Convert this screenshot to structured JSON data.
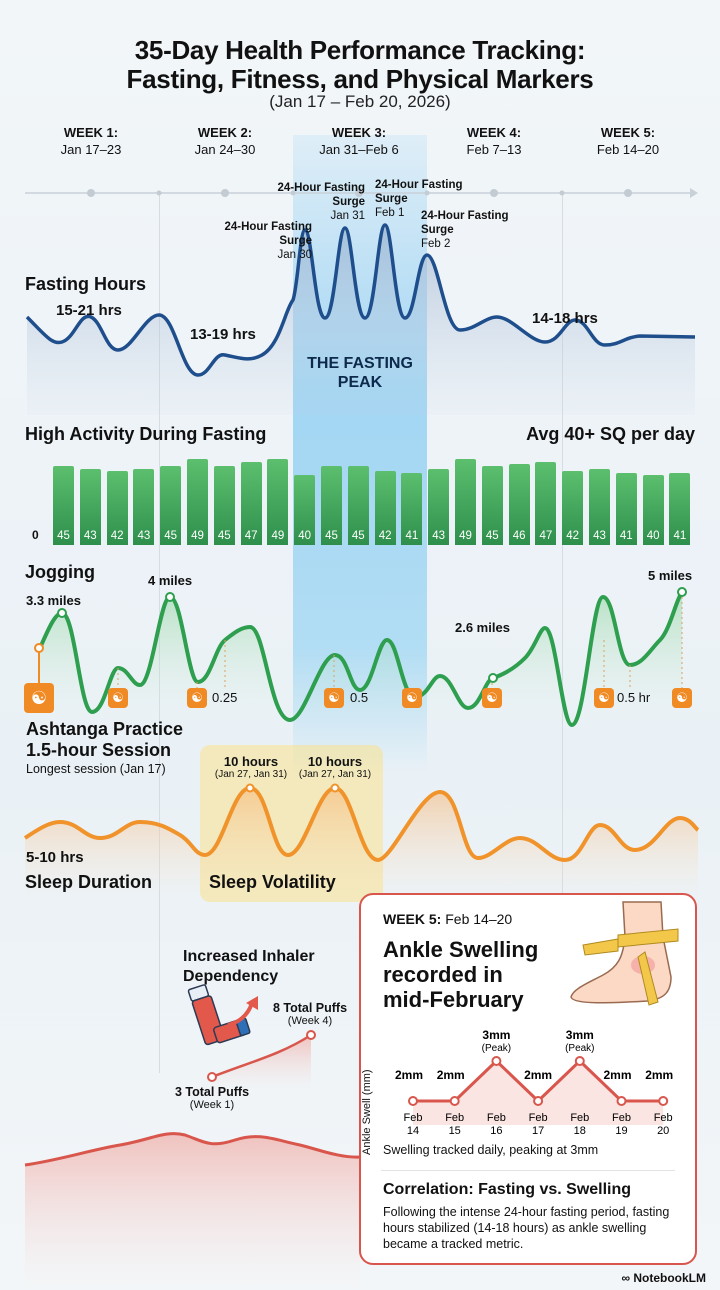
{
  "title_line1": "35-Day Health Performance Tracking:",
  "title_line2": "Fasting, Fitness, and Physical Markers",
  "subtitle": "(Jan 17 – Feb 20, 2026)",
  "weeks": [
    {
      "name": "WEEK 1:",
      "range": "Jan 17–23"
    },
    {
      "name": "WEEK 2:",
      "range": "Jan 24–30"
    },
    {
      "name": "WEEK 3:",
      "range": "Jan 31–Feb 6"
    },
    {
      "name": "WEEK 4:",
      "range": "Feb 7–13"
    },
    {
      "name": "WEEK 5:",
      "range": "Feb 14–20"
    }
  ],
  "fasting": {
    "label": "Fasting Hours",
    "range_w1": "15-21 hrs",
    "range_w2": "13-19 hrs",
    "range_w45": "14-18 hrs",
    "peak_label": "THE FASTING PEAK",
    "surges": [
      {
        "title": "24-Hour Fasting Surge",
        "date": "Jan 30"
      },
      {
        "title": "24-Hour Fasting Surge",
        "date": "Jan 31"
      },
      {
        "title": "24-Hour Fasting Surge",
        "date": "Feb 1"
      },
      {
        "title": "24-Hour Fasting Surge",
        "date": "Feb 2"
      }
    ],
    "color": "#1f4e8c"
  },
  "activity": {
    "title": "High Activity During Fasting",
    "avg": "Avg 40+ SQ per day",
    "zero": "0",
    "color": "#3aa85a"
  },
  "jogging": {
    "title": "Jogging",
    "labels": [
      "3.3 miles",
      "4 miles",
      "2.6 miles",
      "5 miles"
    ],
    "yoga_durations": [
      "0.25",
      "0.5",
      "0.5 hr"
    ],
    "color": "#2e9e4f"
  },
  "ashtanga": {
    "line1": "Ashtanga Practice",
    "line2": "1.5-hour Session",
    "note": "Longest session (Jan 17)",
    "color": "#f08a24"
  },
  "sleep": {
    "range": "5-10 hrs",
    "title": "Sleep Duration",
    "volatility": "Sleep Volatility",
    "peaks": [
      {
        "value": "10 hours",
        "dates": "(Jan 27, Jan 31)"
      },
      {
        "value": "10 hours",
        "dates": "(Jan 27, Jan 31)"
      }
    ],
    "color": "#f0932b"
  },
  "inhaler": {
    "title_line1": "Increased Inhaler",
    "title_line2": "Dependency",
    "start": "3 Total Puffs",
    "start_note": "(Week 1)",
    "end": "8 Total Puffs",
    "end_note": "(Week 4)"
  },
  "card": {
    "week_name": "WEEK 5:",
    "week_range": "Feb 14–20",
    "title_lines": [
      "Ankle Swelling",
      "recorded in",
      "mid-February"
    ],
    "caption": "Swelling tracked daily, peaking at 3mm",
    "corr_title": "Correlation: Fasting vs. Swelling",
    "corr_text": "Following the intense 24-hour fasting period, fasting hours stabilized (14-18 hours) as ankle swelling became a tracked metric."
  },
  "brand": "NotebookLM",
  "chart_data": [
    {
      "type": "bar",
      "title": "High Activity During Fasting",
      "values": [
        45,
        43,
        42,
        43,
        45,
        49,
        45,
        47,
        49,
        40,
        45,
        45,
        42,
        41,
        43,
        49,
        45,
        46,
        47,
        42,
        43,
        41,
        40,
        41
      ],
      "ylim": [
        0,
        50
      ]
    },
    {
      "type": "line",
      "ylabel": "Ankle Swell (mm)",
      "categories": [
        "Feb 14",
        "Feb 15",
        "Feb 16",
        "Feb 17",
        "Feb 18",
        "Feb 19",
        "Feb 20"
      ],
      "values": [
        2,
        2,
        3,
        2,
        3,
        2,
        2
      ],
      "data_labels": [
        "2mm",
        "2mm",
        "3mm",
        "2mm",
        "3mm",
        "2mm",
        "2mm"
      ],
      "peak_note": "(Peak)",
      "color": "#d9564c"
    }
  ]
}
